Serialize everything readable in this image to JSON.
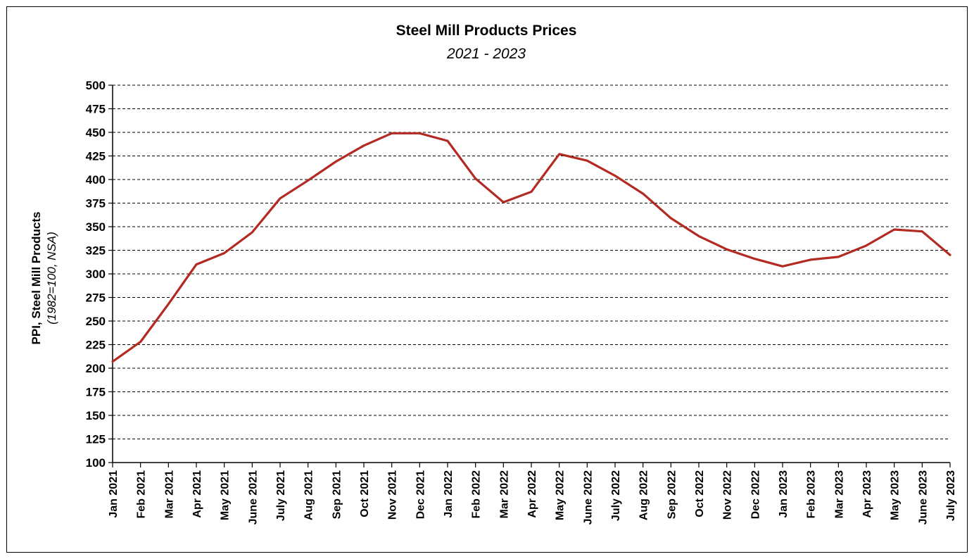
{
  "chart_data": {
    "type": "line",
    "title": "Steel Mill Products Prices",
    "subtitle": "2021 - 2023",
    "ylabel": "PPI, Steel Mill Products",
    "ylabel_sub": "(1982=100, NSA)",
    "xlabel": "",
    "ylim": [
      100,
      500
    ],
    "yticks": [
      100,
      125,
      150,
      175,
      200,
      225,
      250,
      275,
      300,
      325,
      350,
      375,
      400,
      425,
      450,
      475,
      500
    ],
    "grid": true,
    "categories": [
      "Jan 2021",
      "Feb 2021",
      "Mar 2021",
      "Apr 2021",
      "May 2021",
      "June 2021",
      "July 2021",
      "Aug 2021",
      "Sep 2021",
      "Oct 2021",
      "Nov 2021",
      "Dec 2021",
      "Jan 2022",
      "Feb 2022",
      "Mar 2022",
      "Apr 2022",
      "May 2022",
      "June 2022",
      "July 2022",
      "Aug 2022",
      "Sep 2022",
      "Oct 2022",
      "Nov 2022",
      "Dec 2022",
      "Jan 2023",
      "Feb 2023",
      "Mar 2023",
      "Apr 2023",
      "May 2023",
      "June 2023",
      "July 2023"
    ],
    "series": [
      {
        "values": [
          207,
          228,
          268,
          310,
          322,
          344,
          380,
          399,
          419,
          436,
          449,
          449,
          441,
          401,
          376,
          387,
          427,
          420,
          404,
          385,
          359,
          340,
          326,
          316,
          308,
          315,
          318,
          330,
          347,
          345,
          320
        ],
        "color": "#b22a22"
      }
    ]
  }
}
